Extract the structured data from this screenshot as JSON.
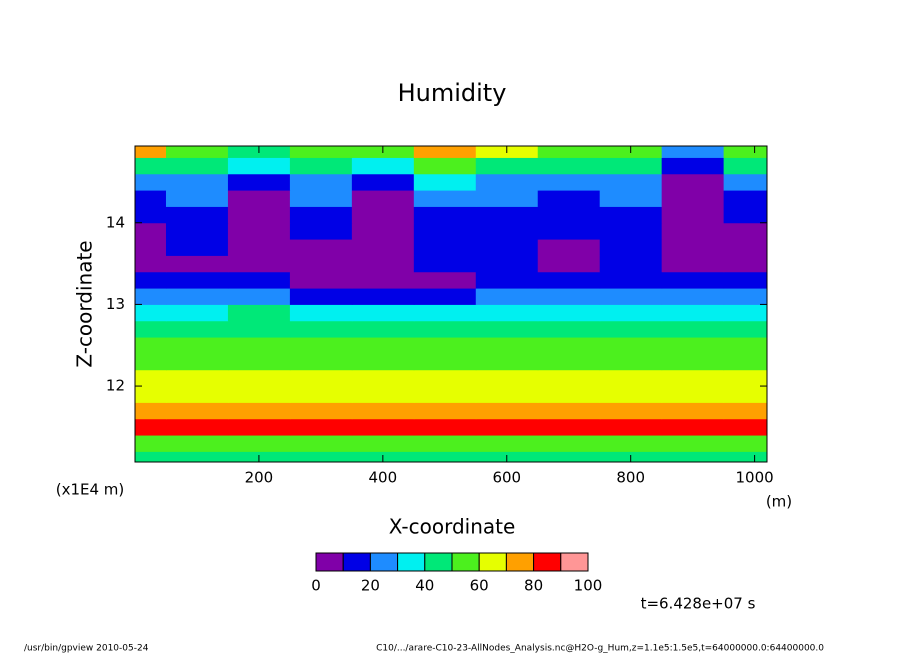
{
  "chart_data": {
    "type": "contour",
    "title": "Humidity",
    "xlabel": "X-coordinate",
    "ylabel": "Z-coordinate",
    "x_unit": "(m)",
    "y_unit": "(x1E4 m)",
    "time_label": "t=6.428e+07 s",
    "footer_left": "/usr/bin/gpview   2010-05-24",
    "footer_right": "C10/.../arare-C10-23-AllNodes_Analysis.nc@H2O-g_Hum,z=1.1e5:1.5e5,t=64000000.0:64400000.0",
    "xlim": [
      0,
      1020
    ],
    "xticks": [
      200,
      400,
      600,
      800,
      1000
    ],
    "ylim": [
      11.07,
      14.94
    ],
    "yticks": [
      12,
      13,
      14
    ],
    "x": [
      0,
      100,
      200,
      300,
      400,
      500,
      600,
      700,
      800,
      900,
      1000
    ],
    "z": [
      11.1,
      11.3,
      11.5,
      11.7,
      11.9,
      12.1,
      12.3,
      12.5,
      12.7,
      12.9,
      13.1,
      13.3,
      13.5,
      13.7,
      13.9,
      14.1,
      14.3,
      14.5,
      14.7,
      14.9
    ],
    "values": [
      [
        45,
        45,
        45,
        45,
        45,
        45,
        45,
        45,
        45,
        45,
        45
      ],
      [
        55,
        55,
        55,
        55,
        55,
        55,
        55,
        55,
        55,
        55,
        55
      ],
      [
        82,
        82,
        82,
        82,
        82,
        82,
        82,
        82,
        82,
        82,
        82
      ],
      [
        72,
        72,
        72,
        72,
        72,
        72,
        72,
        72,
        72,
        72,
        72
      ],
      [
        65,
        65,
        65,
        65,
        65,
        65,
        65,
        65,
        65,
        65,
        65
      ],
      [
        63,
        63,
        63,
        63,
        63,
        63,
        63,
        63,
        63,
        63,
        63
      ],
      [
        58,
        58,
        58,
        58,
        58,
        58,
        58,
        58,
        58,
        58,
        58
      ],
      [
        52,
        52,
        52,
        52,
        52,
        52,
        52,
        52,
        52,
        52,
        52
      ],
      [
        45,
        45,
        45,
        45,
        45,
        45,
        45,
        45,
        45,
        45,
        45
      ],
      [
        38,
        38,
        40,
        35,
        32,
        32,
        38,
        38,
        36,
        38,
        38
      ],
      [
        22,
        25,
        25,
        18,
        15,
        18,
        20,
        22,
        25,
        22,
        22
      ],
      [
        12,
        15,
        10,
        8,
        5,
        8,
        12,
        10,
        15,
        12,
        15
      ],
      [
        5,
        8,
        5,
        5,
        3,
        12,
        10,
        8,
        12,
        5,
        5
      ],
      [
        5,
        12,
        5,
        5,
        3,
        15,
        15,
        8,
        15,
        3,
        5
      ],
      [
        8,
        15,
        5,
        12,
        5,
        15,
        18,
        10,
        15,
        3,
        5
      ],
      [
        12,
        18,
        5,
        15,
        5,
        18,
        18,
        15,
        18,
        3,
        12
      ],
      [
        15,
        20,
        8,
        20,
        8,
        20,
        25,
        18,
        20,
        5,
        15
      ],
      [
        25,
        28,
        15,
        25,
        15,
        30,
        28,
        25,
        28,
        8,
        25
      ],
      [
        45,
        40,
        30,
        40,
        30,
        50,
        45,
        42,
        40,
        15,
        45
      ],
      [
        70,
        55,
        45,
        55,
        50,
        75,
        60,
        55,
        50,
        25,
        55
      ]
    ],
    "levels": [
      0,
      10,
      20,
      30,
      40,
      50,
      60,
      70,
      80,
      90,
      100
    ],
    "level_colors": [
      "#8000a8",
      "#0000e6",
      "#1e8cff",
      "#00f0f0",
      "#00e878",
      "#4cf01e",
      "#e6ff00",
      "#ffa000",
      "#ff0000",
      "#ff9696"
    ],
    "colorbar_ticks": [
      0,
      20,
      40,
      60,
      80,
      100
    ]
  }
}
